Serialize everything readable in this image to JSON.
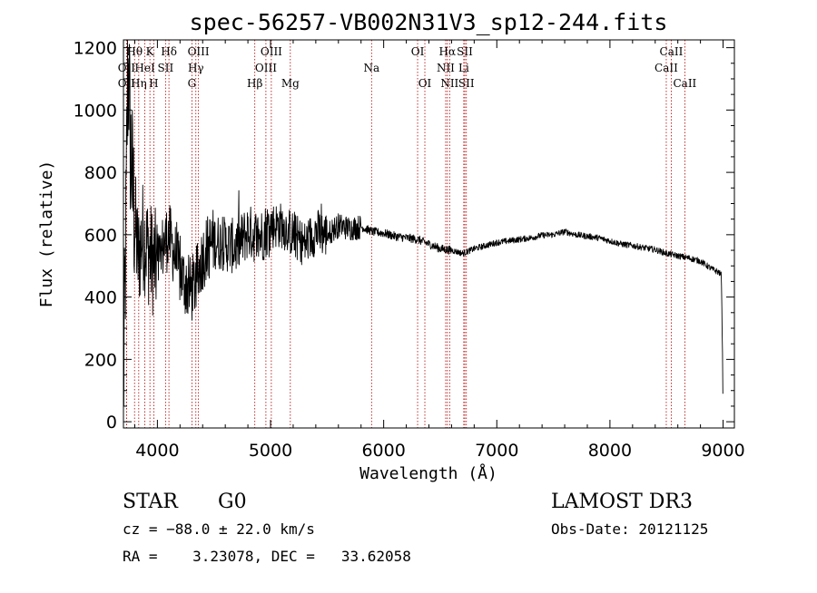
{
  "chart_data": {
    "type": "line",
    "title": "spec-56257-VB002N31V3_sp12-244.fits",
    "xlabel": "Wavelength (Å)",
    "ylabel": "Flux (relative)",
    "xlim": [
      3700,
      9100
    ],
    "ylim": [
      -20,
      1225
    ],
    "xticks": [
      4000,
      5000,
      6000,
      7000,
      8000,
      9000
    ],
    "xtick_labels": [
      "4000",
      "5000",
      "6000",
      "7000",
      "8000",
      "9000"
    ],
    "yticks": [
      0,
      200,
      400,
      600,
      800,
      1000,
      1200
    ],
    "ytick_labels": [
      "0",
      "200",
      "400",
      "600",
      "800",
      "1000",
      "1200"
    ],
    "lines": [
      {
        "name": "OII",
        "label": "OII",
        "x": 3727,
        "row": 1
      },
      {
        "name": "OII-2",
        "label": "OII",
        "x": 3727,
        "row": 2
      },
      {
        "name": "Htheta",
        "label": "Hθ",
        "x": 3798,
        "row": 0
      },
      {
        "name": "Heta",
        "label": "Hη",
        "x": 3835,
        "row": 2
      },
      {
        "name": "HeI",
        "label": "HeI",
        "x": 3889,
        "row": 1
      },
      {
        "name": "K",
        "label": "K",
        "x": 3934,
        "row": 0
      },
      {
        "name": "H",
        "label": "H",
        "x": 3968,
        "row": 2
      },
      {
        "name": "SII",
        "label": "SII",
        "x": 4072,
        "row": 1
      },
      {
        "name": "Hdelta",
        "label": "Hδ",
        "x": 4102,
        "row": 0
      },
      {
        "name": "OIII",
        "label": "OIII",
        "x": 4363,
        "row": 0
      },
      {
        "name": "Hgamma",
        "label": "Hγ",
        "x": 4340,
        "row": 1
      },
      {
        "name": "G",
        "label": "G",
        "x": 4305,
        "row": 2
      },
      {
        "name": "Hbeta",
        "label": "Hβ",
        "x": 4861,
        "row": 2
      },
      {
        "name": "OIII-2",
        "label": "OIII",
        "x": 5007,
        "row": 0
      },
      {
        "name": "OIII-3",
        "label": "OIII",
        "x": 4959,
        "row": 1
      },
      {
        "name": "Mg",
        "label": "Mg",
        "x": 5175,
        "row": 2
      },
      {
        "name": "Na",
        "label": "Na",
        "x": 5893,
        "row": 1
      },
      {
        "name": "OI",
        "label": "OI",
        "x": 6300,
        "row": 0
      },
      {
        "name": "OI-2",
        "label": "OI",
        "x": 6364,
        "row": 2
      },
      {
        "name": "Halpha",
        "label": "Hα",
        "x": 6563,
        "row": 0
      },
      {
        "name": "NII",
        "label": "NII",
        "x": 6548,
        "row": 1
      },
      {
        "name": "NII-2",
        "label": "NII",
        "x": 6583,
        "row": 2
      },
      {
        "name": "SII-2",
        "label": "SII",
        "x": 6717,
        "row": 0
      },
      {
        "name": "Li",
        "label": "Li",
        "x": 6708,
        "row": 1
      },
      {
        "name": "SII-3",
        "label": "SII",
        "x": 6731,
        "row": 2
      },
      {
        "name": "CaII",
        "label": "CaII",
        "x": 8542,
        "row": 0
      },
      {
        "name": "CaII-2",
        "label": "CaII",
        "x": 8498,
        "row": 1
      },
      {
        "name": "CaII-3",
        "label": "CaII",
        "x": 8662,
        "row": 2
      }
    ],
    "spectrum_anchors": [
      [
        3700,
        100
      ],
      [
        3710,
        300
      ],
      [
        3725,
        700
      ],
      [
        3735,
        1050
      ],
      [
        3745,
        1150
      ],
      [
        3760,
        900
      ],
      [
        3780,
        750
      ],
      [
        3800,
        650
      ],
      [
        3830,
        520
      ],
      [
        3870,
        600
      ],
      [
        3910,
        560
      ],
      [
        3950,
        520
      ],
      [
        4000,
        500
      ],
      [
        4050,
        560
      ],
      [
        4100,
        600
      ],
      [
        4150,
        540
      ],
      [
        4200,
        480
      ],
      [
        4250,
        440
      ],
      [
        4300,
        420
      ],
      [
        4350,
        460
      ],
      [
        4400,
        530
      ],
      [
        4450,
        560
      ],
      [
        4500,
        580
      ],
      [
        4600,
        570
      ],
      [
        4700,
        560
      ],
      [
        4800,
        610
      ],
      [
        4900,
        590
      ],
      [
        5000,
        630
      ],
      [
        5100,
        630
      ],
      [
        5200,
        600
      ],
      [
        5300,
        570
      ],
      [
        5400,
        610
      ],
      [
        5500,
        600
      ],
      [
        5600,
        630
      ],
      [
        5700,
        620
      ],
      [
        5800,
        625
      ],
      [
        5900,
        610
      ],
      [
        6000,
        605
      ],
      [
        6100,
        595
      ],
      [
        6200,
        590
      ],
      [
        6300,
        585
      ],
      [
        6400,
        570
      ],
      [
        6500,
        555
      ],
      [
        6600,
        550
      ],
      [
        6700,
        540
      ],
      [
        6800,
        555
      ],
      [
        6900,
        565
      ],
      [
        7000,
        575
      ],
      [
        7100,
        580
      ],
      [
        7200,
        585
      ],
      [
        7300,
        590
      ],
      [
        7400,
        598
      ],
      [
        7500,
        600
      ],
      [
        7600,
        610
      ],
      [
        7700,
        600
      ],
      [
        7800,
        595
      ],
      [
        7900,
        590
      ],
      [
        8000,
        580
      ],
      [
        8100,
        570
      ],
      [
        8200,
        565
      ],
      [
        8300,
        558
      ],
      [
        8400,
        552
      ],
      [
        8500,
        540
      ],
      [
        8600,
        532
      ],
      [
        8700,
        525
      ],
      [
        8800,
        515
      ],
      [
        8900,
        490
      ],
      [
        8960,
        480
      ],
      [
        8985,
        470
      ],
      [
        9000,
        90
      ]
    ],
    "noise_zones": [
      [
        3700,
        3800,
        280
      ],
      [
        3800,
        4000,
        180
      ],
      [
        4000,
        4500,
        110
      ],
      [
        4500,
        5000,
        90
      ],
      [
        5000,
        5500,
        75
      ],
      [
        5500,
        5800,
        40
      ],
      [
        5800,
        6600,
        14
      ],
      [
        6600,
        9000,
        10
      ]
    ]
  },
  "info": {
    "object_type": "STAR",
    "subclass": "G0",
    "survey": "LAMOST DR3",
    "cz": "cz = −88.0 ± 22.0 km/s",
    "obs_date": "Obs-Date: 20121125",
    "radec": "RA =    3.23078, DEC =   33.62058"
  }
}
